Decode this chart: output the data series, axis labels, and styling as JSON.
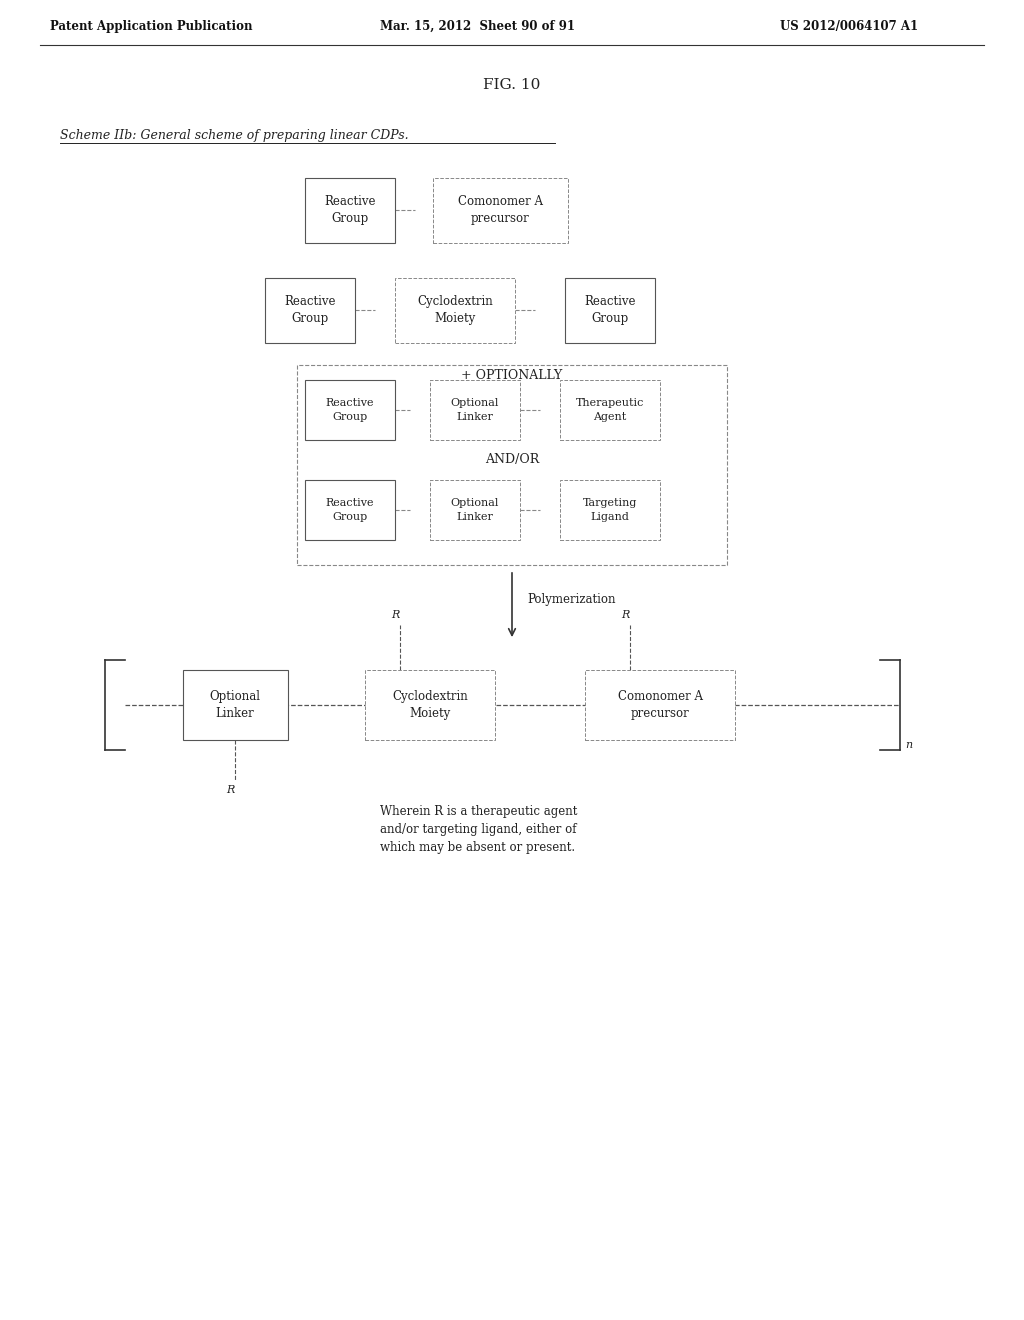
{
  "header_left": "Patent Application Publication",
  "header_mid": "Mar. 15, 2012  Sheet 90 of 91",
  "header_right": "US 2012/0064107 A1",
  "fig_title": "FIG. 10",
  "scheme_label": "Scheme IIb: General scheme of preparing linear CDPs.",
  "optionally_label": "+ OPTIONALLY",
  "andor_label": "AND/OR",
  "polymerization_label": "Polymerization",
  "r_label": "R",
  "n_label": "n",
  "footnote": "Wherein R is a therapeutic agent\nand/or targeting ligand, either of\nwhich may be absent or present.",
  "bg_color": "#ffffff",
  "box_edge_color": "#555555",
  "text_color": "#222222",
  "dashed_color": "#888888"
}
